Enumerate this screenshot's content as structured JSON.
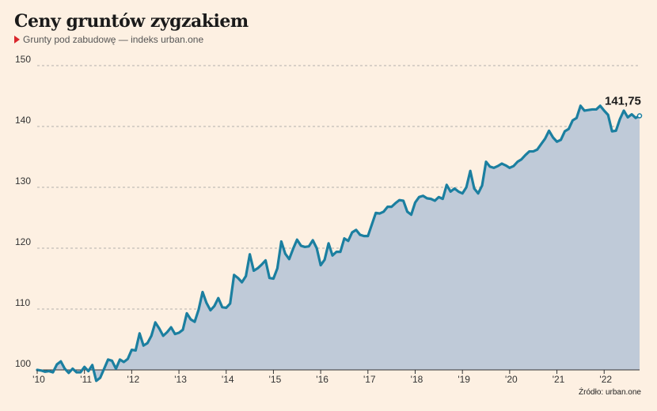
{
  "header": {
    "title": "Ceny gruntów zygzakiem",
    "subtitle": "Grunty pod zabudowę — indeks urban.one"
  },
  "source": "Źródło: urban.one",
  "colors": {
    "line": "#1b7fa0",
    "area": "#bfcad8",
    "marker": "#d9262c",
    "background": "#fdf0e2"
  },
  "chart_data": {
    "type": "area",
    "title": "Ceny gruntów zygzakiem",
    "subtitle": "Grunty pod zabudowę — indeks urban.one",
    "xlabel": "",
    "ylabel": "",
    "ylim": [
      100,
      150
    ],
    "yticks": [
      100,
      110,
      120,
      130,
      140,
      150
    ],
    "xticks": [
      "'10",
      "'11",
      "'12",
      "'13",
      "'14",
      "'15",
      "'16",
      "'17",
      "'18",
      "'19",
      "'20",
      "'21",
      "'22"
    ],
    "grid": true,
    "end_label": "141,75",
    "series": [
      {
        "values": [
          100.0,
          99.9,
          99.7,
          99.8,
          99.6,
          100.9,
          101.4,
          100.2,
          99.5,
          100.2,
          99.6,
          99.6,
          100.5,
          99.8,
          100.8,
          98.2,
          98.7,
          100.2,
          101.7,
          101.5,
          100.2,
          101.7,
          101.3,
          101.8,
          103.3,
          103.2,
          106.0,
          104.0,
          104.4,
          105.6,
          107.8,
          106.8,
          105.6,
          106.2,
          107.0,
          105.9,
          106.1,
          106.6,
          109.3,
          108.3,
          107.9,
          109.9,
          112.8,
          111.0,
          109.8,
          110.5,
          111.8,
          110.3,
          110.2,
          110.9,
          115.6,
          115.1,
          114.4,
          115.4,
          119.0,
          116.3,
          116.7,
          117.3,
          118.0,
          115.1,
          115.0,
          116.7,
          121.1,
          119.1,
          118.2,
          119.9,
          121.4,
          120.4,
          120.2,
          120.3,
          121.3,
          120.0,
          117.2,
          118.1,
          120.8,
          118.8,
          119.4,
          119.4,
          121.6,
          121.2,
          122.6,
          123.0,
          122.2,
          122.0,
          122.0,
          123.9,
          125.8,
          125.7,
          126.0,
          126.8,
          126.8,
          127.4,
          127.9,
          127.8,
          126.0,
          125.5,
          127.5,
          128.4,
          128.6,
          128.2,
          128.1,
          127.8,
          128.4,
          128.1,
          130.4,
          129.3,
          129.8,
          129.3,
          129.0,
          130.0,
          132.7,
          129.8,
          129.0,
          130.3,
          134.2,
          133.4,
          133.2,
          133.5,
          133.9,
          133.6,
          133.2,
          133.5,
          134.2,
          134.6,
          135.3,
          135.9,
          135.9,
          136.2,
          137.1,
          138.0,
          139.3,
          138.2,
          137.5,
          137.8,
          139.2,
          139.6,
          141.0,
          141.4,
          143.4,
          142.6,
          142.7,
          142.8,
          142.8,
          143.4,
          142.6,
          141.9,
          139.2,
          139.3,
          141.2,
          142.6,
          141.5,
          142.0,
          141.4,
          141.75
        ]
      }
    ]
  }
}
